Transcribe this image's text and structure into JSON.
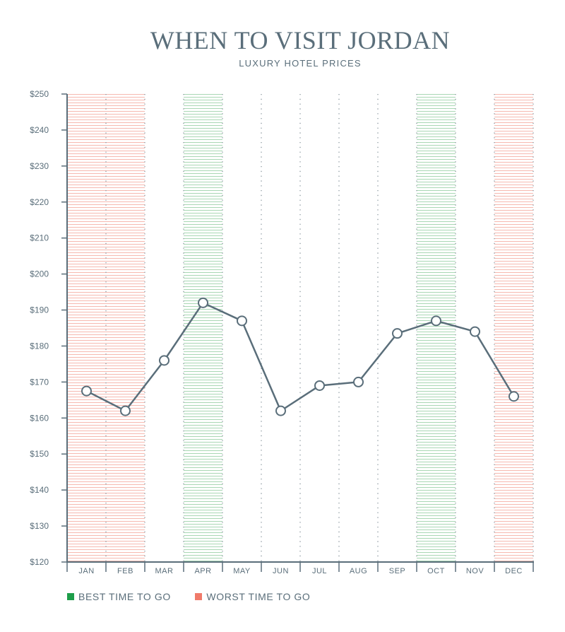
{
  "header": {
    "title": "WHEN TO VISIT JORDAN",
    "subtitle": "LUXURY HOTEL PRICES"
  },
  "legend": {
    "best_label": "BEST TIME TO GO",
    "worst_label": "WORST TIME TO GO",
    "best_color": "#1e9e4a",
    "worst_color": "#f07a6a"
  },
  "chart_data": {
    "type": "line",
    "categories": [
      "JAN",
      "FEB",
      "MAR",
      "APR",
      "MAY",
      "JUN",
      "JUL",
      "AUG",
      "SEP",
      "OCT",
      "NOV",
      "DEC"
    ],
    "values": [
      167.5,
      162,
      176,
      192,
      187,
      162,
      169,
      170,
      183.5,
      187,
      184,
      166
    ],
    "ylim": [
      120,
      250
    ],
    "yticks": [
      "$120",
      "$130",
      "$140",
      "$150",
      "$160",
      "$170",
      "$180",
      "$190",
      "$200",
      "$210",
      "$220",
      "$230",
      "$240",
      "$250"
    ],
    "best_months": [
      "APR",
      "OCT"
    ],
    "worst_months": [
      "JAN",
      "FEB",
      "DEC"
    ],
    "line_color": "#5a6e7a"
  }
}
